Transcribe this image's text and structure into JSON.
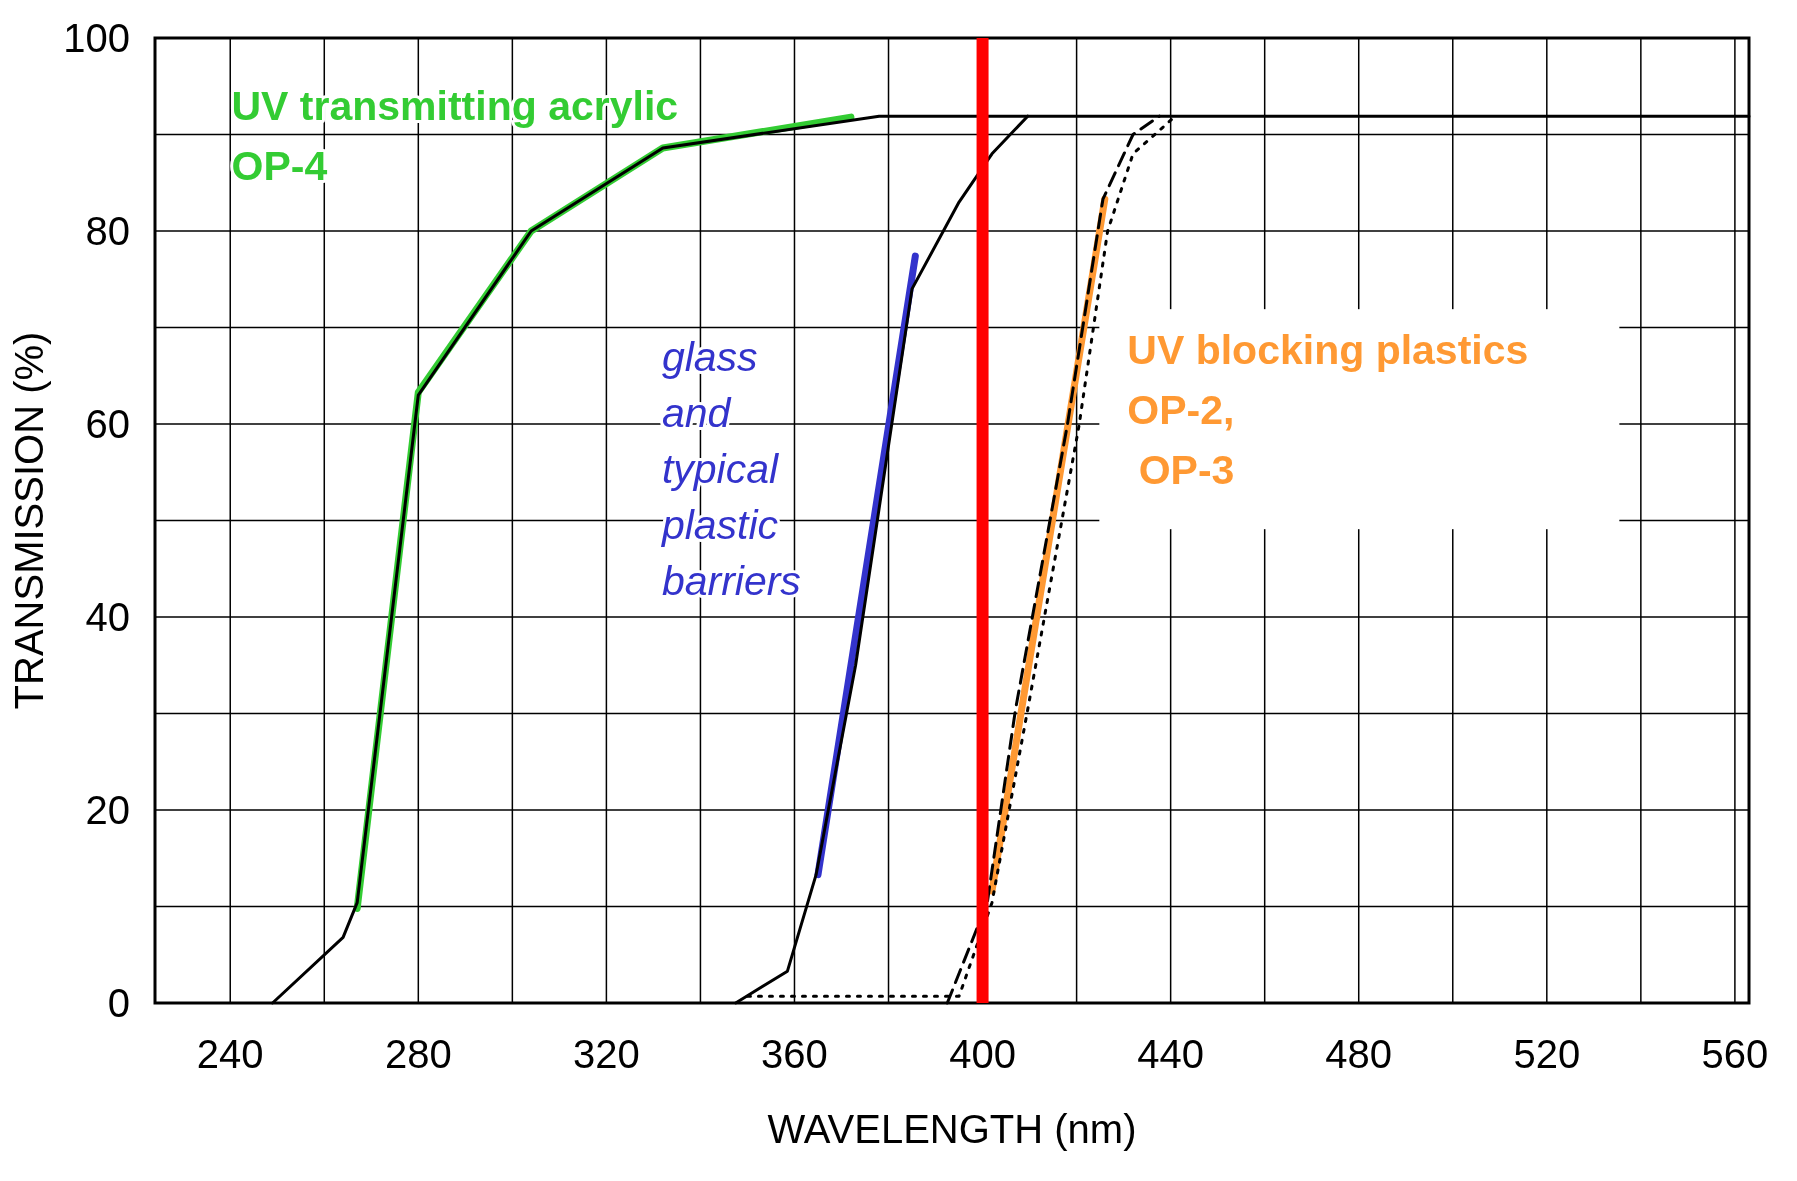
{
  "chart_data": {
    "type": "line",
    "xlabel": "WAVELENGTH (nm)",
    "ylabel": "TRANSMISSION (%)",
    "xlim": [
      224,
      563
    ],
    "ylim": [
      0,
      100
    ],
    "xticks": [
      240,
      {
        "value": 260,
        "label": null
      },
      280,
      {
        "value": 300,
        "label": null
      },
      320,
      {
        "value": 340,
        "label": null
      },
      360,
      {
        "value": 380,
        "label": null
      },
      400,
      {
        "value": 420,
        "label": null
      },
      440,
      {
        "value": 460,
        "label": null
      },
      480,
      {
        "value": 500,
        "label": null
      },
      520,
      {
        "value": 540,
        "label": null
      },
      560
    ],
    "yticks": [
      0,
      {
        "value": 10,
        "label": null
      },
      20,
      {
        "value": 30,
        "label": null
      },
      40,
      {
        "value": 50,
        "label": null
      },
      60,
      {
        "value": 70,
        "label": null
      },
      80,
      {
        "value": 90,
        "label": null
      },
      100
    ],
    "grid": true,
    "legend": false,
    "marker": "none",
    "series": [
      {
        "color": "#000000",
        "line_style": "solid",
        "x": [
          249,
          264,
          267,
          280,
          304,
          332,
          378,
          563
        ],
        "values": [
          0,
          6.8,
          10.4,
          63,
          80,
          88.6,
          91.9,
          91.9
        ]
      },
      {
        "color": "#000000",
        "line_style": "solid",
        "x": [
          347.5,
          358.5,
          364.6,
          373,
          385,
          395,
          402,
          409.6
        ],
        "values": [
          0,
          3.3,
          13.3,
          35,
          74,
          83,
          88,
          91.9
        ]
      },
      {
        "color": "#000000",
        "line_style": "dashed",
        "x": [
          392.5,
          401,
          407,
          418,
          425.6,
          432,
          437.6
        ],
        "values": [
          0,
          10.4,
          30.4,
          59.8,
          83.3,
          90,
          91.9
        ]
      },
      {
        "color": "#000000",
        "line_style": "dotted",
        "x": [
          350,
          370,
          395,
          402,
          409.6,
          420.5,
          426.6,
          432,
          441
        ],
        "values": [
          0.7,
          0.7,
          0.7,
          10.4,
          30.4,
          59.8,
          80,
          88,
          91.9
        ]
      },
      {
        "name": "UV transmitting acrylic\nOP-4",
        "color": "#33cc33",
        "line_style": "solid",
        "x": [
          267,
          280,
          304,
          332,
          372
        ],
        "values": [
          9.8,
          63.3,
          80,
          88.6,
          91.8
        ]
      },
      {
        "name": "glass\nand\ntypical\nplastic\nbarriers",
        "color": "#3333cc",
        "line_style": "solid",
        "x": [
          365,
          385.7
        ],
        "values": [
          13.3,
          77.4
        ]
      },
      {
        "name": "UV blocking plastics\nOP-2,\n OP-3",
        "color": "#ff9933",
        "line_style": "solid",
        "x": [
          402,
          426
        ],
        "values": [
          11.6,
          83.3
        ]
      }
    ],
    "ref_lines": [
      {
        "axis": "x",
        "value": 400,
        "label": null,
        "color": "#ff0000"
      }
    ]
  }
}
